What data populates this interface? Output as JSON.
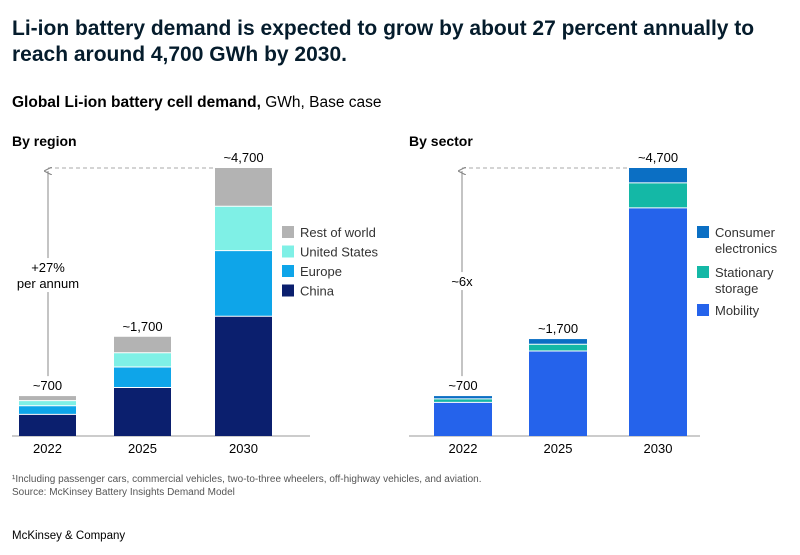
{
  "headline": "Li-ion battery demand is expected to grow by about 27 percent annually to reach around 4,700  GWh by 2030.",
  "subtitle": {
    "bold": "Global Li-ion battery cell demand,",
    "rest": " GWh, Base case"
  },
  "colors": {
    "china": "#0b1f6e",
    "europe": "#0ea5e9",
    "united_states": "#7ff0e6",
    "rest_of_world": "#b3b3b3",
    "mobility": "#2563eb",
    "stationary_storage": "#14b8a6",
    "consumer_electronics": "#0b6fc4",
    "axis": "#888888"
  },
  "chart_data": [
    {
      "type": "bar",
      "stacked": true,
      "title": "By region",
      "categories": [
        "2022",
        "2025",
        "2030"
      ],
      "totals_labels": [
        "~700",
        "~1,700",
        "~4,700"
      ],
      "series": [
        {
          "name": "China",
          "values": [
            380,
            850,
            2100
          ]
        },
        {
          "name": "Europe",
          "values": [
            150,
            360,
            1150
          ]
        },
        {
          "name": "United States",
          "values": [
            90,
            250,
            780
          ]
        },
        {
          "name": "Rest of world",
          "values": [
            80,
            280,
            670
          ]
        }
      ],
      "ylim": [
        0,
        4700
      ],
      "annotation": {
        "line1": "+27%",
        "line2": "per annum"
      },
      "legend_position": "right"
    },
    {
      "type": "bar",
      "stacked": true,
      "title": "By sector",
      "categories": [
        "2022",
        "2025",
        "2030"
      ],
      "totals_labels": [
        "~700",
        "~1,700",
        "~4,700"
      ],
      "series": [
        {
          "name": "Mobility",
          "values": [
            590,
            1490,
            4000
          ]
        },
        {
          "name": "Stationary storage",
          "values": [
            60,
            120,
            440
          ]
        },
        {
          "name": "Consumer electronics",
          "values": [
            50,
            90,
            260
          ]
        }
      ],
      "ylim": [
        0,
        4700
      ],
      "annotation": {
        "line1": "~6x"
      },
      "legend_position": "right"
    }
  ],
  "legend_region": [
    {
      "label": "Rest of world",
      "color_key": "rest_of_world"
    },
    {
      "label": "United States",
      "color_key": "united_states"
    },
    {
      "label": "Europe",
      "color_key": "europe"
    },
    {
      "label": "China",
      "color_key": "china"
    }
  ],
  "legend_sector": [
    {
      "line1": "Consumer",
      "line2": "electronics",
      "color_key": "consumer_electronics"
    },
    {
      "line1": "Stationary",
      "line2": "storage",
      "color_key": "stationary_storage"
    },
    {
      "line1": "Mobility",
      "line2": "",
      "color_key": "mobility"
    }
  ],
  "footnote": "¹Including passenger cars, commercial vehicles, two-to-three wheelers, off-highway vehicles, and aviation.",
  "source": "Source: McKinsey Battery Insights Demand Model",
  "brand": "McKinsey & Company"
}
